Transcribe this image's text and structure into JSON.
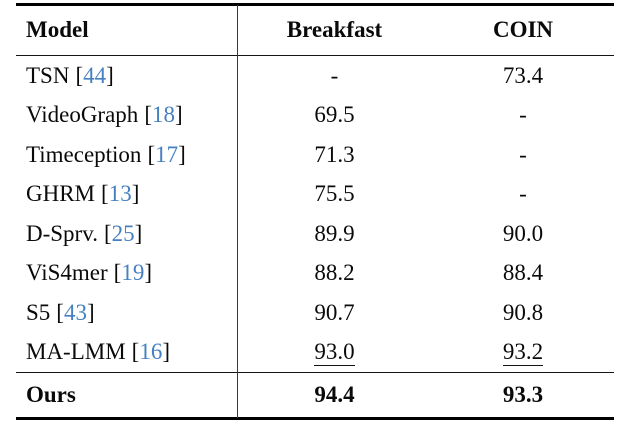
{
  "table": {
    "headers": {
      "model": "Model",
      "breakfast": "Breakfast",
      "coin": "COIN"
    },
    "citation_brackets": {
      "open": "[",
      "close": "]"
    },
    "rows": [
      {
        "model": "TSN",
        "ref": "44",
        "breakfast": "-",
        "coin": "73.4"
      },
      {
        "model": "VideoGraph",
        "ref": "18",
        "breakfast": "69.5",
        "coin": "-"
      },
      {
        "model": "Timeception",
        "ref": "17",
        "breakfast": "71.3",
        "coin": "-"
      },
      {
        "model": "GHRM",
        "ref": "13",
        "breakfast": "75.5",
        "coin": "-"
      },
      {
        "model": "D-Sprv.",
        "ref": "25",
        "breakfast": "89.9",
        "coin": "90.0"
      },
      {
        "model": "ViS4mer",
        "ref": "19",
        "breakfast": "88.2",
        "coin": "88.4"
      },
      {
        "model": "S5",
        "ref": "43",
        "breakfast": "90.7",
        "coin": "90.8"
      },
      {
        "model": "MA-LMM",
        "ref": "16",
        "breakfast": "93.0",
        "coin": "93.2"
      }
    ],
    "footer_row": {
      "model": "Ours",
      "breakfast": "94.4",
      "coin": "93.3"
    },
    "colors": {
      "citation": "#4580c1",
      "text": "#0a0a0a",
      "rule": "#000000"
    }
  }
}
